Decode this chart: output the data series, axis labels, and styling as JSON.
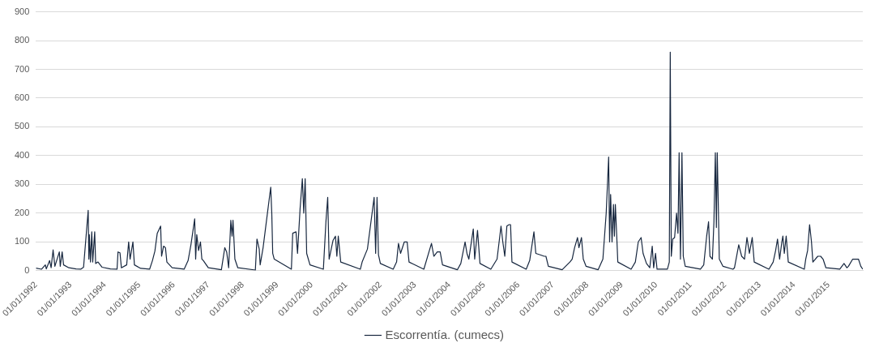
{
  "chart_data": {
    "type": "line",
    "x": [
      "1992-01-01",
      "1992-03-01",
      "1992-04-10",
      "1992-04-20",
      "1992-05-25",
      "1992-06-10",
      "1992-07-01",
      "1992-07-20",
      "1992-09-05",
      "1992-09-15",
      "1992-10-05",
      "1992-10-20",
      "1992-12-15",
      "1993-03-01",
      "1993-04-20",
      "1993-05-20",
      "1993-07-08",
      "1993-07-15",
      "1993-07-20",
      "1993-08-01",
      "1993-08-15",
      "1993-08-25",
      "1993-09-15",
      "1993-09-25",
      "1993-10-20",
      "1993-12-01",
      "1994-03-01",
      "1994-05-10",
      "1994-05-20",
      "1994-06-10",
      "1994-06-25",
      "1994-08-20",
      "1994-09-10",
      "1994-09-25",
      "1994-10-25",
      "1994-11-10",
      "1995-01-15",
      "1995-04-20",
      "1995-05-20",
      "1995-06-15",
      "1995-07-10",
      "1995-08-15",
      "1995-08-25",
      "1995-09-15",
      "1995-10-05",
      "1995-10-20",
      "1995-12-15",
      "1996-04-20",
      "1996-06-01",
      "1996-07-01",
      "1996-08-10",
      "1996-08-20",
      "1996-09-01",
      "1996-09-20",
      "1996-10-10",
      "1996-10-25",
      "1996-11-10",
      "1997-01-01",
      "1997-05-20",
      "1997-06-25",
      "1997-07-15",
      "1997-08-05",
      "1997-08-28",
      "1997-09-10",
      "1997-09-20",
      "1997-10-10",
      "1997-11-10",
      "1998-05-15",
      "1998-06-01",
      "1998-06-25",
      "1998-07-05",
      "1998-08-05",
      "1998-09-20",
      "1998-10-25",
      "1998-11-05",
      "1998-11-15",
      "1998-12-01",
      "1999-06-01",
      "1999-06-15",
      "1999-07-20",
      "1999-08-05",
      "1999-09-01",
      "1999-09-25",
      "1999-10-10",
      "1999-10-25",
      "1999-11-10",
      "1999-12-15",
      "2000-05-05",
      "2000-06-01",
      "2000-06-20",
      "2000-07-05",
      "2000-08-15",
      "2000-09-10",
      "2000-09-25",
      "2000-10-10",
      "2000-11-05",
      "2001-06-01",
      "2001-06-20",
      "2001-08-15",
      "2001-10-25",
      "2001-11-10",
      "2001-11-25",
      "2001-12-10",
      "2001-12-30",
      "2002-05-15",
      "2002-06-20",
      "2002-07-10",
      "2002-08-01",
      "2002-09-10",
      "2002-10-10",
      "2002-10-30",
      "2003-04-05",
      "2003-06-25",
      "2003-07-20",
      "2003-08-25",
      "2003-09-25",
      "2003-10-20",
      "2004-03-25",
      "2004-05-01",
      "2004-06-15",
      "2004-07-05",
      "2004-07-25",
      "2004-09-10",
      "2004-09-25",
      "2004-10-25",
      "2004-11-20",
      "2005-03-15",
      "2005-05-20",
      "2005-07-01",
      "2005-07-20",
      "2005-08-10",
      "2005-09-01",
      "2005-09-25",
      "2005-10-10",
      "2005-10-25",
      "2006-03-25",
      "2006-05-01",
      "2006-06-15",
      "2006-07-05",
      "2006-08-20",
      "2006-10-01",
      "2006-10-20",
      "2006-11-15",
      "2007-04-10",
      "2007-07-01",
      "2007-07-25",
      "2007-08-20",
      "2007-09-20",
      "2007-10-05",
      "2007-11-01",
      "2007-11-20",
      "2007-12-20",
      "2008-04-25",
      "2008-06-15",
      "2008-07-20",
      "2008-08-15",
      "2008-08-25",
      "2008-09-05",
      "2008-09-20",
      "2008-10-05",
      "2008-10-15",
      "2008-10-25",
      "2008-11-10",
      "2008-11-20",
      "2009-04-10",
      "2009-05-25",
      "2009-06-25",
      "2009-07-25",
      "2009-08-15",
      "2009-09-20",
      "2009-10-25",
      "2009-11-20",
      "2009-12-05",
      "2009-12-25",
      "2010-01-10",
      "2010-04-30",
      "2010-05-20",
      "2010-05-30",
      "2010-06-10",
      "2010-06-25",
      "2010-07-15",
      "2010-08-05",
      "2010-08-20",
      "2010-09-01",
      "2010-09-15",
      "2010-10-01",
      "2010-10-15",
      "2010-11-05",
      "2011-04-15",
      "2011-05-20",
      "2011-06-20",
      "2011-07-10",
      "2011-07-25",
      "2011-08-20",
      "2011-09-05",
      "2011-09-20",
      "2011-10-01",
      "2011-10-10",
      "2011-10-20",
      "2011-11-01",
      "2011-12-10",
      "2012-03-25",
      "2012-04-10",
      "2012-05-25",
      "2012-06-25",
      "2012-07-25",
      "2012-08-20",
      "2012-09-15",
      "2012-10-15",
      "2012-11-05",
      "2013-04-10",
      "2013-05-25",
      "2013-06-20",
      "2013-07-10",
      "2013-08-01",
      "2013-08-25",
      "2013-09-05",
      "2013-09-20",
      "2013-10-10",
      "2013-11-01",
      "2014-04-20",
      "2014-05-05",
      "2014-05-25",
      "2014-06-15",
      "2014-07-05",
      "2014-07-20",
      "2014-09-10",
      "2014-10-10",
      "2014-11-05",
      "2014-12-05",
      "2015-05-01",
      "2015-06-15",
      "2015-07-15",
      "2015-08-01",
      "2015-09-15",
      "2015-10-15",
      "2015-11-15",
      "2015-12-10",
      "2015-12-31"
    ],
    "series": [
      {
        "name": "Escorrentía. (cumecs)",
        "color": "#17273f",
        "values": [
          9,
          5,
          20,
          6,
          35,
          10,
          72,
          15,
          65,
          15,
          65,
          20,
          10,
          6,
          5,
          12,
          210,
          40,
          125,
          30,
          135,
          30,
          135,
          25,
          30,
          12,
          6,
          5,
          65,
          62,
          10,
          20,
          100,
          40,
          100,
          20,
          8,
          5,
          35,
          68,
          130,
          155,
          50,
          85,
          80,
          30,
          10,
          5,
          35,
          90,
          180,
          40,
          125,
          70,
          100,
          40,
          35,
          10,
          3,
          80,
          65,
          10,
          175,
          120,
          175,
          40,
          10,
          2,
          110,
          75,
          20,
          80,
          200,
          290,
          200,
          60,
          40,
          5,
          130,
          135,
          60,
          215,
          320,
          200,
          320,
          60,
          20,
          5,
          170,
          255,
          40,
          105,
          120,
          50,
          120,
          30,
          5,
          30,
          75,
          255,
          60,
          255,
          55,
          25,
          5,
          30,
          95,
          60,
          100,
          100,
          30,
          5,
          95,
          50,
          65,
          65,
          20,
          3,
          25,
          100,
          60,
          40,
          145,
          40,
          140,
          25,
          5,
          40,
          155,
          100,
          50,
          155,
          160,
          160,
          30,
          5,
          35,
          135,
          60,
          55,
          50,
          50,
          15,
          3,
          30,
          40,
          80,
          115,
          80,
          115,
          40,
          15,
          3,
          40,
          200,
          395,
          100,
          265,
          100,
          230,
          120,
          230,
          110,
          30,
          5,
          30,
          100,
          115,
          60,
          25,
          10,
          85,
          10,
          60,
          5,
          5,
          30,
          760,
          50,
          110,
          115,
          200,
          130,
          410,
          40,
          410,
          50,
          15,
          5,
          20,
          120,
          170,
          50,
          40,
          170,
          410,
          150,
          410,
          250,
          40,
          15,
          5,
          10,
          90,
          50,
          40,
          115,
          60,
          115,
          30,
          5,
          30,
          70,
          110,
          40,
          100,
          120,
          60,
          120,
          30,
          5,
          40,
          70,
          160,
          100,
          30,
          50,
          50,
          40,
          10,
          5,
          25,
          10,
          15,
          40,
          40,
          40,
          15,
          5
        ]
      }
    ],
    "xlim": [
      "1992-01-01",
      "2015-12-31"
    ],
    "xticks": [
      {
        "value": "1992-01-01",
        "label": "01/01/1992"
      },
      {
        "value": "1993-01-01",
        "label": "01/01/1993"
      },
      {
        "value": "1994-01-01",
        "label": "01/01/1994"
      },
      {
        "value": "1995-01-01",
        "label": "01/01/1995"
      },
      {
        "value": "1996-01-01",
        "label": "01/01/1996"
      },
      {
        "value": "1997-01-01",
        "label": "01/01/1997"
      },
      {
        "value": "1998-01-01",
        "label": "01/01/1998"
      },
      {
        "value": "1999-01-01",
        "label": "01/01/1999"
      },
      {
        "value": "2000-01-01",
        "label": "01/01/2000"
      },
      {
        "value": "2001-01-01",
        "label": "01/01/2001"
      },
      {
        "value": "2002-01-01",
        "label": "01/01/2002"
      },
      {
        "value": "2003-01-01",
        "label": "01/01/2003"
      },
      {
        "value": "2004-01-01",
        "label": "01/01/2004"
      },
      {
        "value": "2005-01-01",
        "label": "01/01/2005"
      },
      {
        "value": "2006-01-01",
        "label": "01/01/2006"
      },
      {
        "value": "2007-01-01",
        "label": "01/01/2007"
      },
      {
        "value": "2008-01-01",
        "label": "01/01/2008"
      },
      {
        "value": "2009-01-01",
        "label": "01/01/2009"
      },
      {
        "value": "2010-01-01",
        "label": "01/01/2010"
      },
      {
        "value": "2011-01-01",
        "label": "01/01/2011"
      },
      {
        "value": "2012-01-01",
        "label": "01/01/2012"
      },
      {
        "value": "2013-01-01",
        "label": "01/01/2013"
      },
      {
        "value": "2014-01-01",
        "label": "01/01/2014"
      },
      {
        "value": "2015-01-01",
        "label": "01/01/2015"
      }
    ],
    "ylim": [
      0,
      900
    ],
    "yticks": [
      0,
      100,
      200,
      300,
      400,
      500,
      600,
      700,
      800,
      900
    ],
    "grid": "y",
    "legend": "bottom",
    "marker": "none",
    "line_style": "solid"
  }
}
